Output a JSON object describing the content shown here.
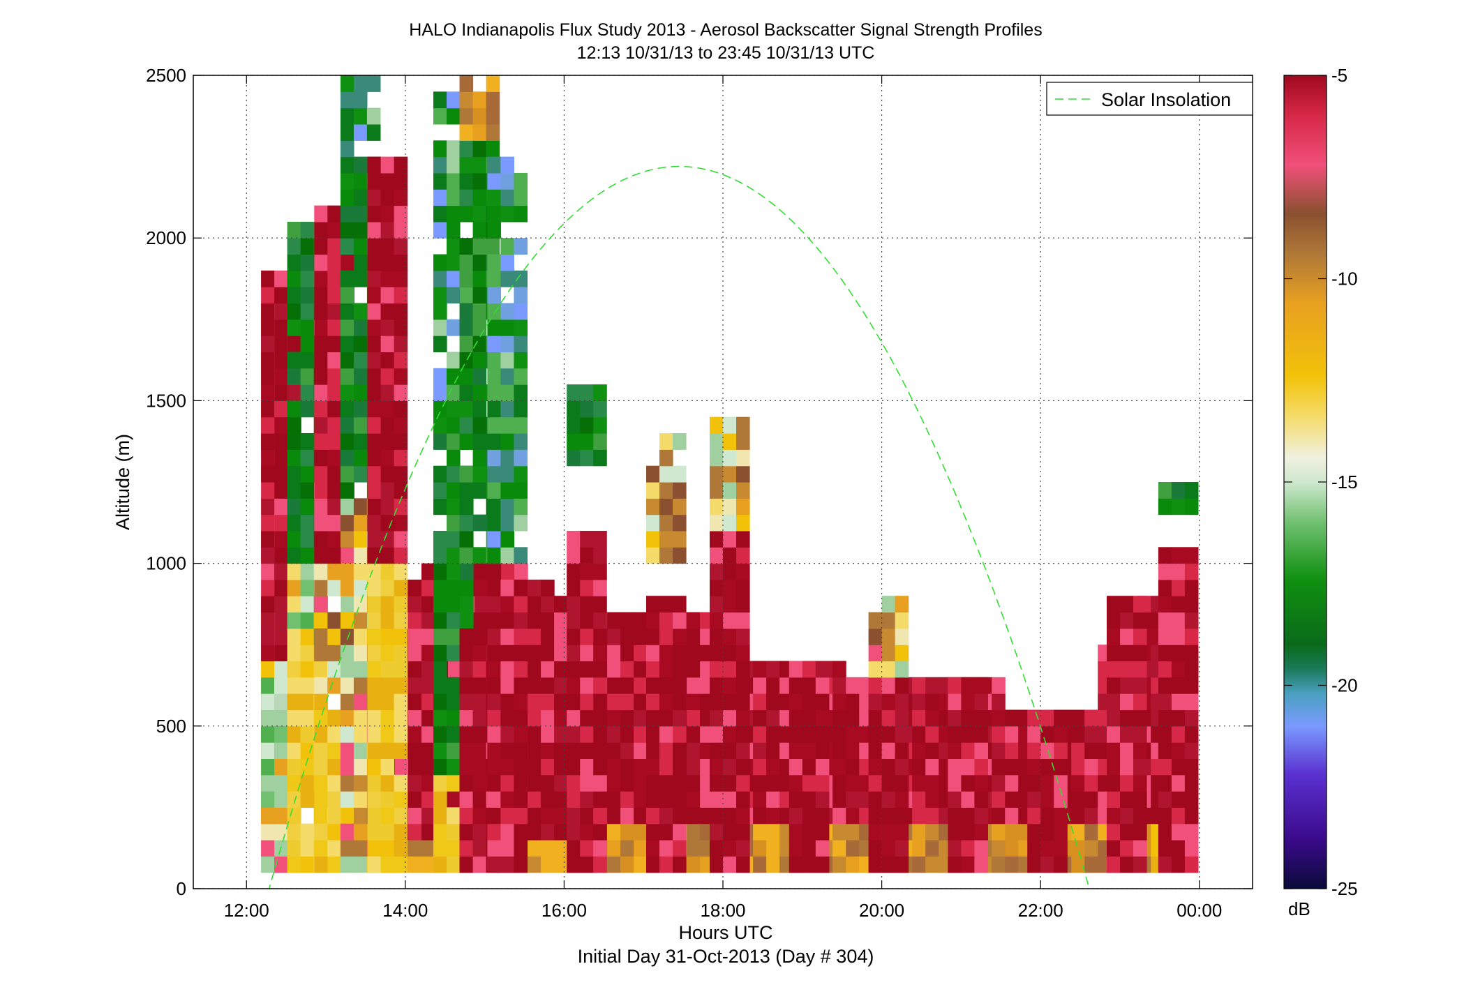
{
  "chart_data": {
    "type": "heatmap",
    "title": "HALO Indianapolis Flux Study 2013 - Aerosol Backscatter Signal Strength Profiles",
    "subtitle": "12:13 10/31/13 to 23:45 10/31/13  UTC",
    "xlabel": "Hours UTC",
    "xlabel2": "Initial Day 31-Oct-2013 (Day # 304)",
    "ylabel": "Altitude (m)",
    "x_ticks": [
      "12:00",
      "14:00",
      "16:00",
      "18:00",
      "20:00",
      "22:00",
      "00:00"
    ],
    "x_tick_hours": [
      12,
      14,
      16,
      18,
      20,
      22,
      24
    ],
    "xlim": [
      11.33,
      24.67
    ],
    "y_ticks": [
      "0",
      "500",
      "1000",
      "1500",
      "2000",
      "2500"
    ],
    "y_tick_values": [
      0,
      500,
      1000,
      1500,
      2000,
      2500
    ],
    "ylim": [
      0,
      2500
    ],
    "grid": true,
    "colorbar": {
      "label": "dB",
      "ticks": [
        "-5",
        "-10",
        "-15",
        "-20",
        "-25"
      ],
      "tick_values": [
        -5,
        -10,
        -15,
        -20,
        -25
      ],
      "range": [
        -25,
        -5
      ]
    },
    "legend": {
      "entries": [
        "Solar Insolation"
      ],
      "position": "top-right",
      "line_color": "#33dd33",
      "line_style": "dashed"
    },
    "solar_insolation": {
      "start_hour": 12.27,
      "end_hour": 22.6,
      "peak_hour": 17.45,
      "peak_altitude": 2220,
      "shape": "parabolic arc"
    },
    "grid_cell": {
      "hours": 0.167,
      "altitude_m": 50
    },
    "profiles": [
      {
        "hour": 12.35,
        "alt": [
          [
            50,
            1800,
            "mix_y"
          ],
          [
            200,
            700,
            "mix_g"
          ],
          [
            700,
            1900,
            "red"
          ]
        ]
      },
      {
        "hour": 12.68,
        "alt": [
          [
            50,
            750,
            "yellow"
          ],
          [
            750,
            1000,
            "mix_g"
          ],
          [
            1000,
            2050,
            "green"
          ]
        ]
      },
      {
        "hour": 13.02,
        "alt": [
          [
            50,
            600,
            "yellow"
          ],
          [
            600,
            1000,
            "mix_y"
          ],
          [
            1000,
            2100,
            "red"
          ]
        ]
      },
      {
        "hour": 13.35,
        "alt": [
          [
            50,
            1200,
            "mix_y"
          ],
          [
            1200,
            2250,
            "green"
          ],
          [
            2250,
            2500,
            "mix_b"
          ]
        ]
      },
      {
        "hour": 13.69,
        "alt": [
          [
            50,
            1000,
            "yellow"
          ],
          [
            1000,
            2250,
            "red"
          ]
        ]
      },
      {
        "hour": 14.52,
        "alt": [
          [
            50,
            350,
            "yellow"
          ],
          [
            350,
            1500,
            "green"
          ],
          [
            1500,
            2450,
            "mix_b"
          ]
        ]
      },
      {
        "hour": 14.85,
        "alt": [
          [
            50,
            800,
            "red"
          ],
          [
            1000,
            2300,
            "green"
          ],
          [
            2300,
            2500,
            "orange"
          ]
        ]
      },
      {
        "hour": 15.2,
        "alt": [
          [
            50,
            950,
            "red"
          ],
          [
            1000,
            2250,
            "mix_b"
          ]
        ]
      },
      {
        "hour": 16.2,
        "alt": [
          [
            50,
            1100,
            "red"
          ],
          [
            1300,
            1550,
            "green"
          ]
        ]
      },
      {
        "hour": 17.2,
        "alt": [
          [
            50,
            900,
            "red"
          ],
          [
            1000,
            1400,
            "mix_y"
          ]
        ]
      },
      {
        "hour": 18.0,
        "alt": [
          [
            50,
            1100,
            "red"
          ],
          [
            1100,
            1450,
            "mix_y"
          ]
        ]
      },
      {
        "hour": 19.0,
        "alt": [
          [
            50,
            700,
            "red"
          ]
        ]
      },
      {
        "hour": 20.0,
        "alt": [
          [
            50,
            650,
            "red"
          ],
          [
            650,
            900,
            "mix_y"
          ]
        ]
      },
      {
        "hour": 21.0,
        "alt": [
          [
            50,
            650,
            "red"
          ]
        ]
      },
      {
        "hour": 22.0,
        "alt": [
          [
            50,
            550,
            "red"
          ]
        ]
      },
      {
        "hour": 23.0,
        "alt": [
          [
            50,
            900,
            "red"
          ]
        ]
      },
      {
        "hour": 23.65,
        "alt": [
          [
            50,
            1050,
            "red"
          ],
          [
            1150,
            1250,
            "green"
          ]
        ]
      }
    ]
  }
}
